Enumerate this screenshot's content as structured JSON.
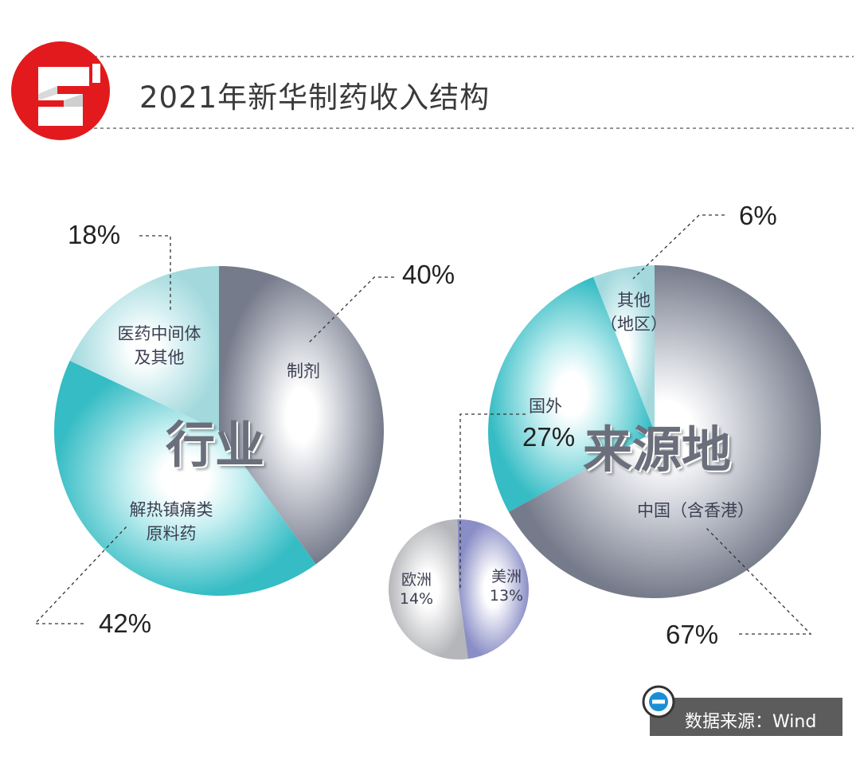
{
  "title": "2021年新华制药收入结构",
  "source": "数据来源：Wind",
  "colors": {
    "brand_red": "#e21a1d",
    "slate": "#7b8090",
    "teal": "#3ec4cb",
    "light_teal": "#a9dde0",
    "gray": "#b7b8bc",
    "purple": "#8a8ec4"
  },
  "chart_data": [
    {
      "type": "pie",
      "title": "行业",
      "slices": [
        {
          "label": "制剂",
          "value": 40,
          "pct_label": "40%"
        },
        {
          "label": "解热镇痛类原料药",
          "label_lines": [
            "解热镇痛类",
            "原料药"
          ],
          "value": 42,
          "pct_label": "42%"
        },
        {
          "label": "医药中间体及其他",
          "label_lines": [
            "医药中间体",
            "及其他"
          ],
          "value": 18,
          "pct_label": "18%"
        }
      ]
    },
    {
      "type": "pie",
      "title": "来源地",
      "slices": [
        {
          "label": "中国（含香港）",
          "value": 67,
          "pct_label": "67%"
        },
        {
          "label": "国外",
          "value": 27,
          "pct_label": "27%"
        },
        {
          "label": "其他（地区）",
          "label_lines": [
            "其他",
            "（地区）"
          ],
          "value": 6,
          "pct_label": "6%"
        }
      ]
    },
    {
      "type": "pie",
      "title": "国外",
      "slices": [
        {
          "label": "美洲",
          "value": 13,
          "pct_label": "13%"
        },
        {
          "label": "欧洲",
          "value": 14,
          "pct_label": "14%"
        }
      ]
    }
  ]
}
